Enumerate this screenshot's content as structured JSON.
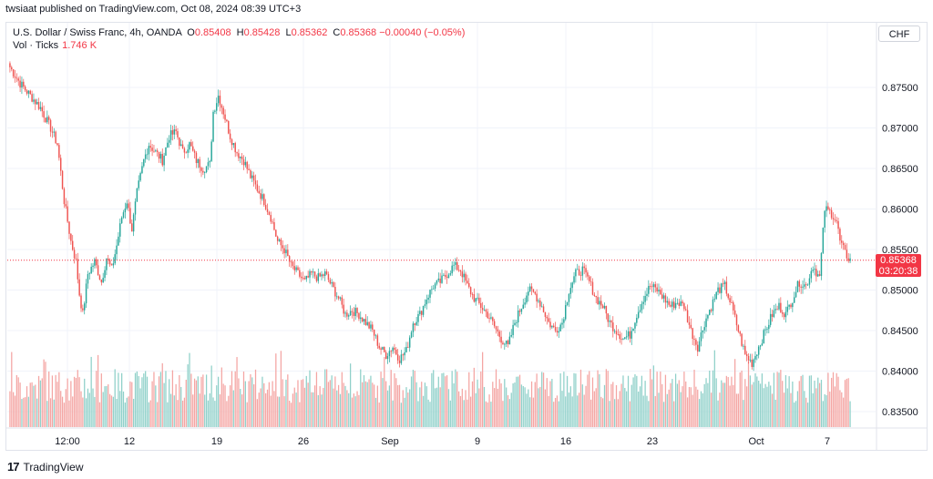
{
  "publisher": "twsiaat published on TradingView.com, Oct 08, 2024 08:39 UTC+3",
  "symbol": {
    "name": "U.S. Dollar / Swiss Franc, 4h, OANDA",
    "o_label": "O",
    "o": "0.85408",
    "h_label": "H",
    "h": "0.85428",
    "l_label": "L",
    "l": "0.85362",
    "c_label": "C",
    "c": "0.85368",
    "change": "−0.00040 (−0.05%)"
  },
  "volume": {
    "label": "Vol · Ticks",
    "value": "1.746 K"
  },
  "currency": "CHF",
  "last_price": {
    "price": "0.85368",
    "countdown": "03:20:38"
  },
  "footer": {
    "logo": "17",
    "brand": "TradingView"
  },
  "colors": {
    "up": "#26a69a",
    "down": "#ef5350",
    "vol_up": "#8fd0c9",
    "vol_down": "#f4a5a3",
    "grid": "#f0f3fa",
    "price_line": "#f23645"
  },
  "chart_data": {
    "type": "candlestick",
    "instrument": "USD/CHF",
    "timeframe": "4h",
    "price_axis": {
      "ticks": [
        "0.87500",
        "0.87000",
        "0.86500",
        "0.86000",
        "0.85500",
        "0.85000",
        "0.84500",
        "0.84000",
        "0.83500"
      ],
      "range": [
        0.8332,
        0.8795
      ]
    },
    "time_axis": {
      "ticks": [
        "12:00",
        "12",
        "19",
        "26",
        "Sep",
        "9",
        "16",
        "23",
        "Oct",
        "7"
      ]
    },
    "anchors": [
      [
        0,
        0.8775
      ],
      [
        6,
        0.8755
      ],
      [
        12,
        0.874
      ],
      [
        18,
        0.8725
      ],
      [
        24,
        0.87
      ],
      [
        28,
        0.868
      ],
      [
        32,
        0.861
      ],
      [
        36,
        0.856
      ],
      [
        39,
        0.8535
      ],
      [
        41,
        0.8495
      ],
      [
        43,
        0.847
      ],
      [
        46,
        0.852
      ],
      [
        50,
        0.8535
      ],
      [
        54,
        0.851
      ],
      [
        57,
        0.854
      ],
      [
        60,
        0.8525
      ],
      [
        63,
        0.8555
      ],
      [
        66,
        0.859
      ],
      [
        69,
        0.861
      ],
      [
        72,
        0.8575
      ],
      [
        75,
        0.862
      ],
      [
        79,
        0.866
      ],
      [
        82,
        0.868
      ],
      [
        86,
        0.867
      ],
      [
        90,
        0.866
      ],
      [
        94,
        0.869
      ],
      [
        98,
        0.8695
      ],
      [
        102,
        0.867
      ],
      [
        106,
        0.868
      ],
      [
        110,
        0.866
      ],
      [
        114,
        0.865
      ],
      [
        118,
        0.8655
      ],
      [
        120,
        0.872
      ],
      [
        123,
        0.874
      ],
      [
        126,
        0.872
      ],
      [
        130,
        0.869
      ],
      [
        134,
        0.867
      ],
      [
        138,
        0.866
      ],
      [
        142,
        0.864
      ],
      [
        146,
        0.8625
      ],
      [
        150,
        0.861
      ],
      [
        154,
        0.859
      ],
      [
        158,
        0.856
      ],
      [
        162,
        0.855
      ],
      [
        166,
        0.853
      ],
      [
        170,
        0.852
      ],
      [
        174,
        0.851
      ],
      [
        178,
        0.852
      ],
      [
        182,
        0.8515
      ],
      [
        186,
        0.852
      ],
      [
        190,
        0.8505
      ],
      [
        194,
        0.849
      ],
      [
        198,
        0.847
      ],
      [
        202,
        0.8475
      ],
      [
        206,
        0.847
      ],
      [
        210,
        0.846
      ],
      [
        214,
        0.845
      ],
      [
        218,
        0.843
      ],
      [
        222,
        0.842
      ],
      [
        226,
        0.843
      ],
      [
        230,
        0.8415
      ],
      [
        234,
        0.8425
      ],
      [
        238,
        0.846
      ],
      [
        242,
        0.847
      ],
      [
        246,
        0.849
      ],
      [
        250,
        0.8505
      ],
      [
        254,
        0.851
      ],
      [
        258,
        0.852
      ],
      [
        262,
        0.853
      ],
      [
        266,
        0.8525
      ],
      [
        270,
        0.8505
      ],
      [
        274,
        0.849
      ],
      [
        278,
        0.848
      ],
      [
        282,
        0.847
      ],
      [
        286,
        0.8455
      ],
      [
        290,
        0.844
      ],
      [
        294,
        0.843
      ],
      [
        298,
        0.846
      ],
      [
        302,
        0.848
      ],
      [
        306,
        0.85
      ],
      [
        310,
        0.8495
      ],
      [
        314,
        0.848
      ],
      [
        318,
        0.846
      ],
      [
        322,
        0.845
      ],
      [
        326,
        0.846
      ],
      [
        330,
        0.85
      ],
      [
        334,
        0.852
      ],
      [
        338,
        0.8525
      ],
      [
        342,
        0.851
      ],
      [
        346,
        0.849
      ],
      [
        350,
        0.848
      ],
      [
        354,
        0.846
      ],
      [
        358,
        0.845
      ],
      [
        362,
        0.844
      ],
      [
        366,
        0.8445
      ],
      [
        370,
        0.847
      ],
      [
        374,
        0.849
      ],
      [
        378,
        0.8505
      ],
      [
        382,
        0.85
      ],
      [
        386,
        0.849
      ],
      [
        390,
        0.848
      ],
      [
        394,
        0.8485
      ],
      [
        398,
        0.848
      ],
      [
        402,
        0.845
      ],
      [
        406,
        0.843
      ],
      [
        410,
        0.846
      ],
      [
        414,
        0.848
      ],
      [
        418,
        0.85
      ],
      [
        422,
        0.8505
      ],
      [
        426,
        0.848
      ],
      [
        430,
        0.845
      ],
      [
        434,
        0.842
      ],
      [
        438,
        0.841
      ],
      [
        442,
        0.843
      ],
      [
        446,
        0.845
      ],
      [
        450,
        0.847
      ],
      [
        454,
        0.848
      ],
      [
        458,
        0.847
      ],
      [
        462,
        0.849
      ],
      [
        466,
        0.851
      ],
      [
        470,
        0.8505
      ],
      [
        474,
        0.853
      ],
      [
        478,
        0.8515
      ],
      [
        481,
        0.86
      ],
      [
        485,
        0.8595
      ],
      [
        488,
        0.8585
      ],
      [
        490,
        0.856
      ],
      [
        493,
        0.8545
      ],
      [
        496,
        0.8537
      ]
    ],
    "volume_range": [
      0,
      1500
    ]
  }
}
